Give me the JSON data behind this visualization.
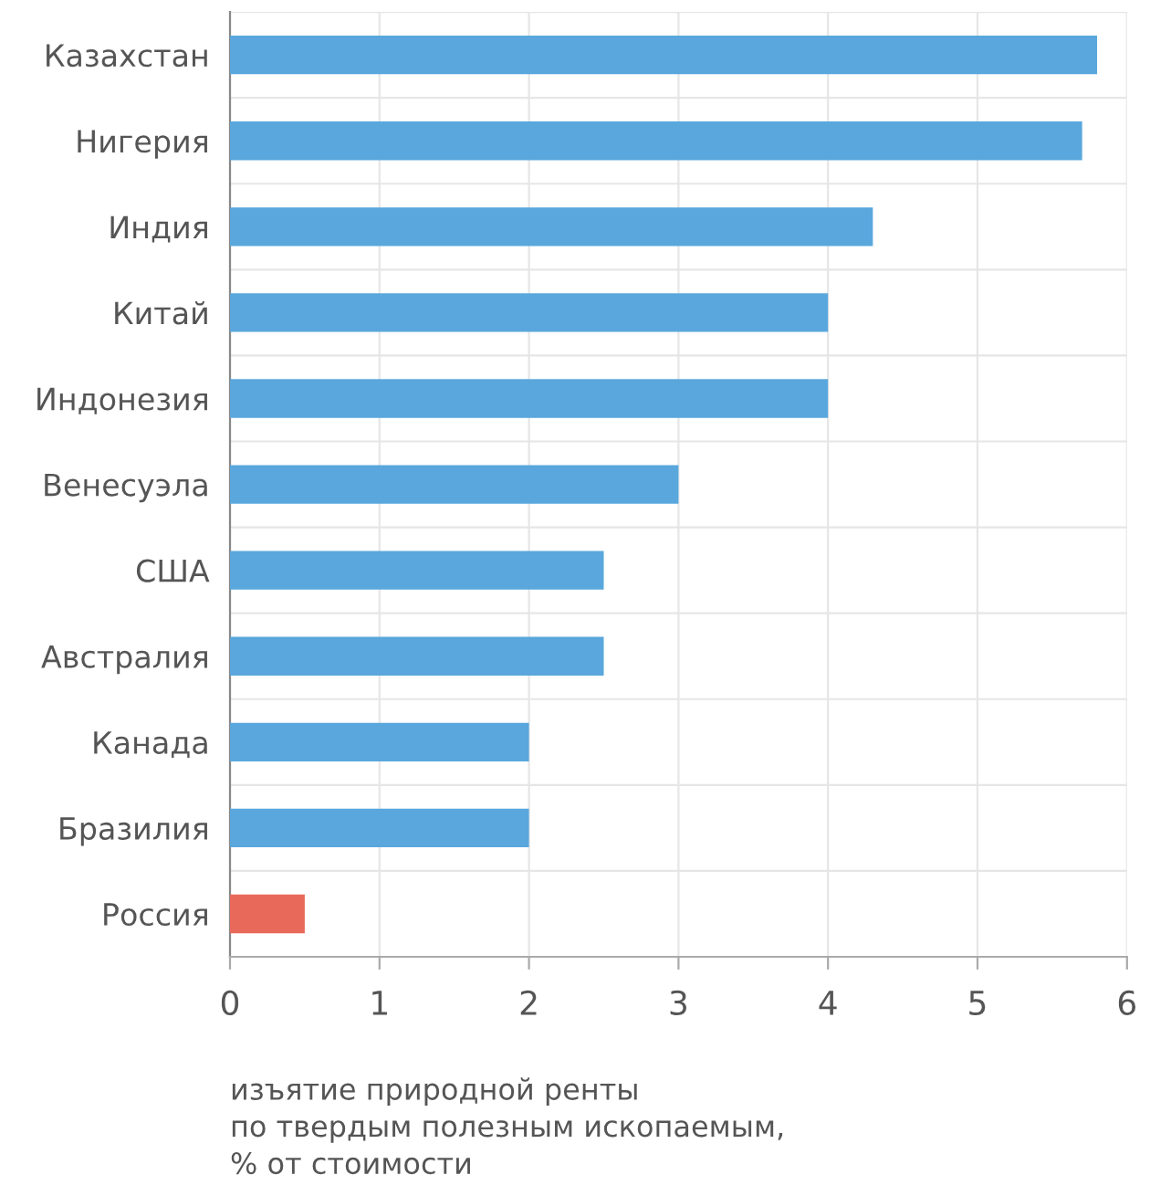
{
  "chart_data": {
    "type": "bar",
    "orientation": "horizontal",
    "categories": [
      "Казахстан",
      "Нигерия",
      "Индия",
      "Китай",
      "Индонезия",
      "Венесуэла",
      "США",
      "Австралия",
      "Канада",
      "Бразилия",
      "Россия"
    ],
    "values": [
      5.8,
      5.7,
      4.3,
      4.0,
      4.0,
      3.0,
      2.5,
      2.5,
      2.0,
      2.0,
      0.5
    ],
    "colors": [
      "#59a7dc",
      "#59a7dc",
      "#59a7dc",
      "#59a7dc",
      "#59a7dc",
      "#59a7dc",
      "#59a7dc",
      "#59a7dc",
      "#59a7dc",
      "#59a7dc",
      "#e8685a"
    ],
    "xlabel": "изъятие природной ренты\nпо твердым полезным ископаемым,\n% от стоимости",
    "xlim": [
      0,
      6
    ],
    "xticks": [
      0,
      1,
      2,
      3,
      4,
      5,
      6
    ],
    "grid": true
  }
}
